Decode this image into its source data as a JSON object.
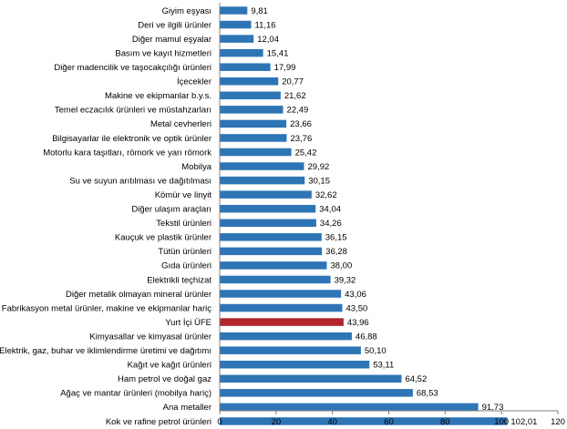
{
  "chart_data": {
    "type": "bar",
    "orientation": "horizontal",
    "title": "",
    "xlabel": "",
    "ylabel": "",
    "xlim": [
      0,
      120
    ],
    "xticks": [
      0,
      20,
      40,
      60,
      80,
      100,
      120
    ],
    "grid": false,
    "legend": "none",
    "bar_color": "#2e75b6",
    "highlight_color": "#b2262c",
    "highlight_category": "Yurt İçi ÜFE",
    "categories": [
      "Giyim eşyası",
      "Deri ve ilgili ürünler",
      "Diğer mamul eşyalar",
      "Basım ve kayıt hizmetleri",
      "Diğer madencilik ve taşocakçılığı ürünleri",
      "İçecekler",
      "Makine ve ekipmanlar b.y.s.",
      "Temel eczacılık ürünleri ve müstahzarları",
      "Metal cevherleri",
      "Bilgisayarlar ile elektronik ve optik ürünler",
      "Motorlu kara taşıtları, römork ve yarı römork",
      "Mobilya",
      "Su ve suyun arıtılması ve dağıtılması",
      "Kömür ve linyit",
      "Diğer ulaşım araçları",
      "Tekstil ürünleri",
      "Kauçuk ve plastik ürünler",
      "Tütün ürünleri",
      "Gıda ürünleri",
      "Elektrikli teçhizat",
      "Diğer metalik olmayan mineral ürünler",
      "Fabrikasyon metal ürünler, makine ve ekipmanlar hariç",
      "Yurt İçi ÜFE",
      "Kimyasallar ve kimyasal ürünler",
      "Elektrik, gaz, buhar ve iklimlendirme üretimi ve dağıtımı",
      "Kağıt ve kağıt ürünleri",
      "Ham petrol ve doğal gaz",
      "Ağaç ve mantar ürünleri (mobilya hariç)",
      "Ana metaller",
      "Kok ve rafine petrol ürünleri"
    ],
    "values": [
      9.81,
      11.16,
      12.04,
      15.41,
      17.99,
      20.77,
      21.62,
      22.49,
      23.66,
      23.76,
      25.42,
      29.92,
      30.15,
      32.62,
      34.04,
      34.26,
      36.15,
      36.28,
      38.0,
      39.32,
      43.06,
      43.5,
      43.96,
      46.88,
      50.1,
      53.11,
      64.52,
      68.53,
      91.73,
      102.01
    ],
    "value_labels": [
      "9,81",
      "11,16",
      "12,04",
      "15,41",
      "17,99",
      "20,77",
      "21,62",
      "22,49",
      "23,66",
      "23,76",
      "25,42",
      "29,92",
      "30,15",
      "32,62",
      "34,04",
      "34,26",
      "36,15",
      "36,28",
      "38,00",
      "39,32",
      "43,06",
      "43,50",
      "43,96",
      "46,88",
      "50,10",
      "53,11",
      "64,52",
      "68,53",
      "91,73",
      "102,01"
    ],
    "tick_labels": [
      "0",
      "20",
      "40",
      "60",
      "80",
      "100",
      "120"
    ]
  }
}
